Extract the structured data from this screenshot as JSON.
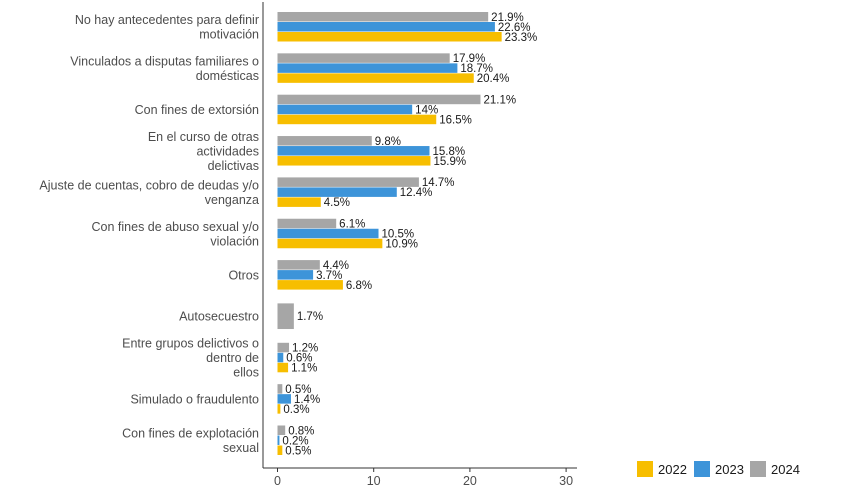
{
  "chart_data": {
    "type": "bar",
    "orientation": "horizontal",
    "categories": [
      [
        "No hay antecedentes para definir",
        "motivación"
      ],
      [
        "Vinculados a disputas familiares o",
        "domésticas"
      ],
      [
        "Con fines de extorsión"
      ],
      [
        "En el curso de otras",
        "actividades",
        "delictivas"
      ],
      [
        "Ajuste de cuentas, cobro de deudas y/o",
        "venganza"
      ],
      [
        "Con fines de abuso sexual y/o",
        "violación"
      ],
      [
        "Otros"
      ],
      [
        "Autosecuestro"
      ],
      [
        "Entre grupos delictivos o",
        "dentro de",
        "ellos"
      ],
      [
        "Simulado o fraudulento"
      ],
      [
        "Con fines de explotación",
        "sexual"
      ]
    ],
    "series": [
      {
        "name": "2024",
        "color": "#a6a6a6",
        "values": [
          21.9,
          17.9,
          21.1,
          9.8,
          14.7,
          6.1,
          4.4,
          1.7,
          1.2,
          0.5,
          0.8
        ],
        "labels": [
          "21.9%",
          "17.9%",
          "21.1%",
          "9.8%",
          "14.7%",
          "6.1%",
          "4.4%",
          "1.7%",
          "1.2%",
          "0.5%",
          "0.8%"
        ]
      },
      {
        "name": "2023",
        "color": "#3d94d9",
        "values": [
          22.6,
          18.7,
          14,
          15.8,
          12.4,
          10.5,
          3.7,
          null,
          0.6,
          1.4,
          0.2
        ],
        "labels": [
          "22.6%",
          "18.7%",
          "14%",
          "15.8%",
          "12.4%",
          "10.5%",
          "3.7%",
          "",
          "0.6%",
          "1.4%",
          "0.2%"
        ]
      },
      {
        "name": "2022",
        "color": "#f7be00",
        "values": [
          23.3,
          20.4,
          16.5,
          15.9,
          4.5,
          10.9,
          6.8,
          null,
          1.1,
          0.3,
          0.5
        ],
        "labels": [
          "23.3%",
          "20.4%",
          "16.5%",
          "15.9%",
          "4.5%",
          "10.9%",
          "6.8%",
          "",
          "1.1%",
          "0.3%",
          "0.5%"
        ]
      }
    ],
    "xlim": [
      0,
      30
    ],
    "xticks": [
      0,
      10,
      20,
      30
    ],
    "xtick_labels": [
      "0",
      "10",
      "20",
      "30"
    ],
    "grid": false,
    "legend_position": "bottom-right",
    "legend": [
      {
        "name": "2022",
        "color": "#f7be00"
      },
      {
        "name": "2023",
        "color": "#3d94d9"
      },
      {
        "name": "2024",
        "color": "#a6a6a6"
      }
    ]
  }
}
